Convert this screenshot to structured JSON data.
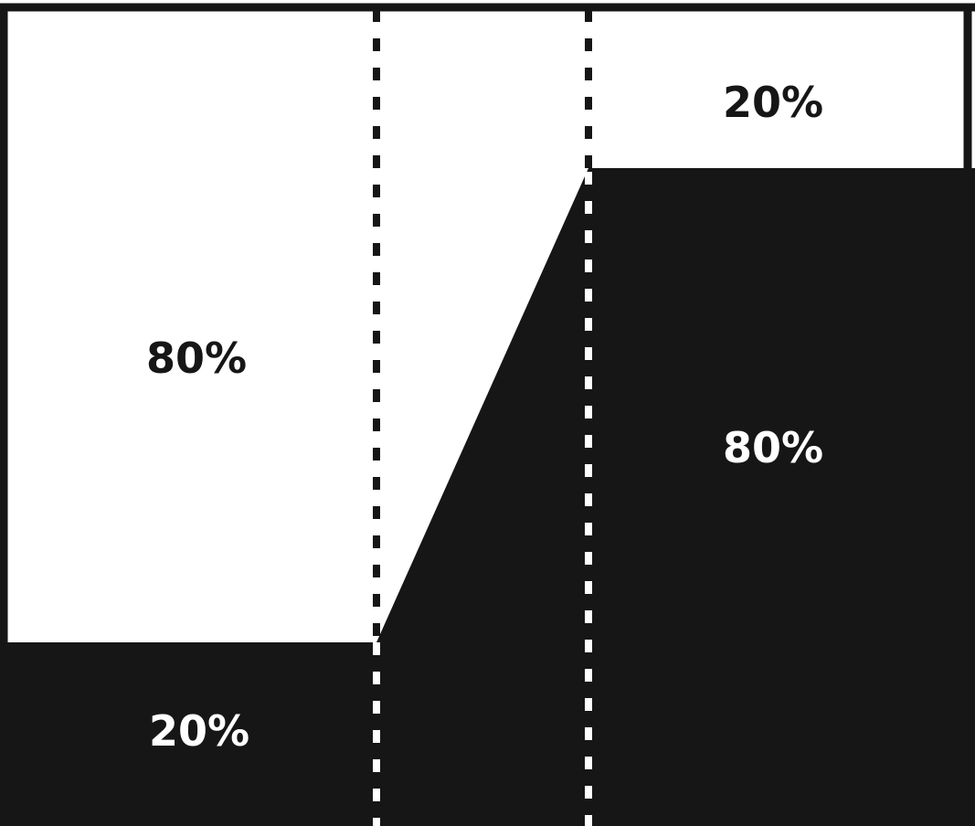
{
  "colors": {
    "dark": "#161616",
    "light": "#ffffff"
  },
  "diagram": {
    "left_bottom_label": "20%",
    "left_top_label": "80%",
    "right_top_label": "20%",
    "right_bottom_label": "80%"
  }
}
